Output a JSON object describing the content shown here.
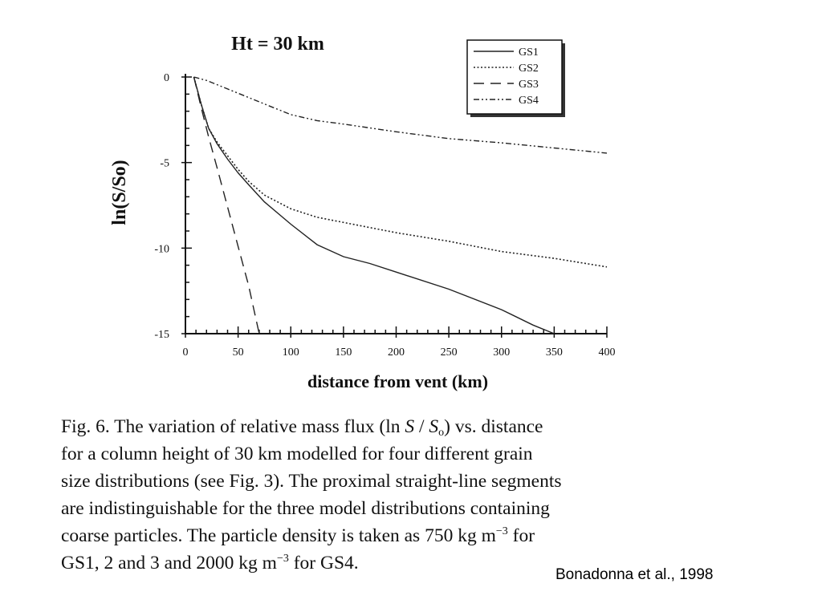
{
  "chart_data": {
    "type": "line",
    "title": "Ht = 30 km",
    "xlabel": "distance  from  vent  (km)",
    "ylabel": "ln(S/So)",
    "xlim": [
      0,
      400
    ],
    "ylim": [
      -15,
      0
    ],
    "x_ticks": [
      0,
      50,
      100,
      150,
      200,
      250,
      300,
      350,
      400
    ],
    "x_tick_labels": [
      "0",
      "50",
      "100",
      "150",
      "200",
      "250",
      "300",
      "350",
      "400"
    ],
    "y_ticks": [
      0,
      -5,
      -10,
      -15
    ],
    "y_tick_labels": [
      "0",
      "-5",
      "-10",
      "-15"
    ],
    "grid": false,
    "legend_position": "top-right",
    "series": [
      {
        "name": "GS1",
        "style": "solid",
        "points": [
          [
            8,
            0
          ],
          [
            15,
            -1.6
          ],
          [
            22,
            -3
          ],
          [
            30,
            -3.9
          ],
          [
            40,
            -4.8
          ],
          [
            50,
            -5.6
          ],
          [
            60,
            -6.3
          ],
          [
            75,
            -7.3
          ],
          [
            100,
            -8.6
          ],
          [
            125,
            -9.8
          ],
          [
            150,
            -10.5
          ],
          [
            175,
            -10.9
          ],
          [
            200,
            -11.4
          ],
          [
            250,
            -12.4
          ],
          [
            300,
            -13.6
          ],
          [
            330,
            -14.5
          ],
          [
            350,
            -15
          ]
        ]
      },
      {
        "name": "GS2",
        "style": "dotted",
        "points": [
          [
            8,
            0
          ],
          [
            15,
            -1.6
          ],
          [
            22,
            -3
          ],
          [
            30,
            -3.8
          ],
          [
            40,
            -4.6
          ],
          [
            50,
            -5.4
          ],
          [
            60,
            -6.1
          ],
          [
            75,
            -6.9
          ],
          [
            100,
            -7.7
          ],
          [
            125,
            -8.2
          ],
          [
            150,
            -8.5
          ],
          [
            175,
            -8.8
          ],
          [
            200,
            -9.1
          ],
          [
            250,
            -9.6
          ],
          [
            300,
            -10.2
          ],
          [
            350,
            -10.6
          ],
          [
            400,
            -11.1
          ]
        ]
      },
      {
        "name": "GS3",
        "style": "dashed",
        "points": [
          [
            8,
            0
          ],
          [
            15,
            -1.8
          ],
          [
            22,
            -3.5
          ],
          [
            30,
            -5.3
          ],
          [
            40,
            -7.6
          ],
          [
            50,
            -9.9
          ],
          [
            60,
            -12.2
          ],
          [
            65,
            -13.6
          ],
          [
            70,
            -15
          ]
        ]
      },
      {
        "name": "GS4",
        "style": "dash-dot-dot",
        "points": [
          [
            8,
            0
          ],
          [
            20,
            -0.2
          ],
          [
            40,
            -0.7
          ],
          [
            60,
            -1.2
          ],
          [
            80,
            -1.7
          ],
          [
            100,
            -2.2
          ],
          [
            125,
            -2.55
          ],
          [
            150,
            -2.75
          ],
          [
            200,
            -3.2
          ],
          [
            250,
            -3.6
          ],
          [
            300,
            -3.85
          ],
          [
            350,
            -4.15
          ],
          [
            400,
            -4.45
          ]
        ]
      }
    ]
  },
  "caption": {
    "lines": [
      [
        "Fig. 6. The variation of relative mass flux (ln ",
        {
          "math": "S"
        },
        " / ",
        {
          "math": "S"
        },
        {
          "sub": "o"
        },
        ") vs. distance"
      ],
      [
        "for a column height of 30 km modelled for four different grain"
      ],
      [
        "size distributions (see Fig. 3). The proximal straight-line segments"
      ],
      [
        "are indistinguishable for the three model distributions containing"
      ],
      [
        "coarse particles. The particle density is taken as 750 kg m",
        {
          "sup": "−3"
        },
        "  for"
      ],
      [
        "GS1, 2 and 3 and 2000 kg m",
        {
          "sup": "−3"
        },
        "  for GS4."
      ]
    ]
  },
  "citation": "Bonadonna et al., 1998",
  "colors": {
    "ink": "#111111",
    "line": "#222222"
  }
}
